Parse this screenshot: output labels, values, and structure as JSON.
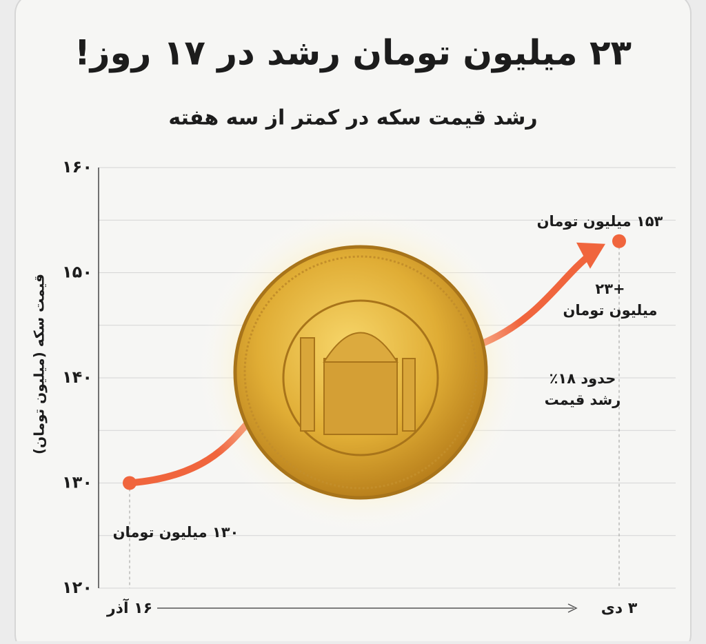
{
  "chart_data": {
    "type": "line",
    "title": "۲۳ میلیون تومان رشد در ۱۷ روز!",
    "subtitle": "رشد قیمت سکه در کمتر از سه هفته",
    "y_label": "قیمت سکه (میلیون تومان)",
    "categories": [
      "۱۶ آذر",
      "۳ دی"
    ],
    "series": [
      {
        "color": "#f0653d",
        "values": [
          130,
          153
        ],
        "value_labels": [
          "۱۳۰ میلیون تومان",
          "۱۵۳ میلیون تومان"
        ]
      }
    ],
    "ylim": [
      120,
      160
    ],
    "yticks": [
      {
        "value": 120,
        "label": "۱۲۰"
      },
      {
        "value": 130,
        "label": "۱۳۰"
      },
      {
        "value": 140,
        "label": "۱۴۰"
      },
      {
        "value": 150,
        "label": "۱۵۰"
      },
      {
        "value": 160,
        "label": "۱۶۰"
      }
    ],
    "minor_yticks": [
      125,
      135,
      145,
      155
    ],
    "grid": true,
    "annotations": [
      {
        "lines": [
          "+۲۳",
          "میلیون تومان"
        ]
      },
      {
        "lines": [
          "حدود ۱۸٪",
          "رشد قیمت"
        ]
      }
    ]
  }
}
